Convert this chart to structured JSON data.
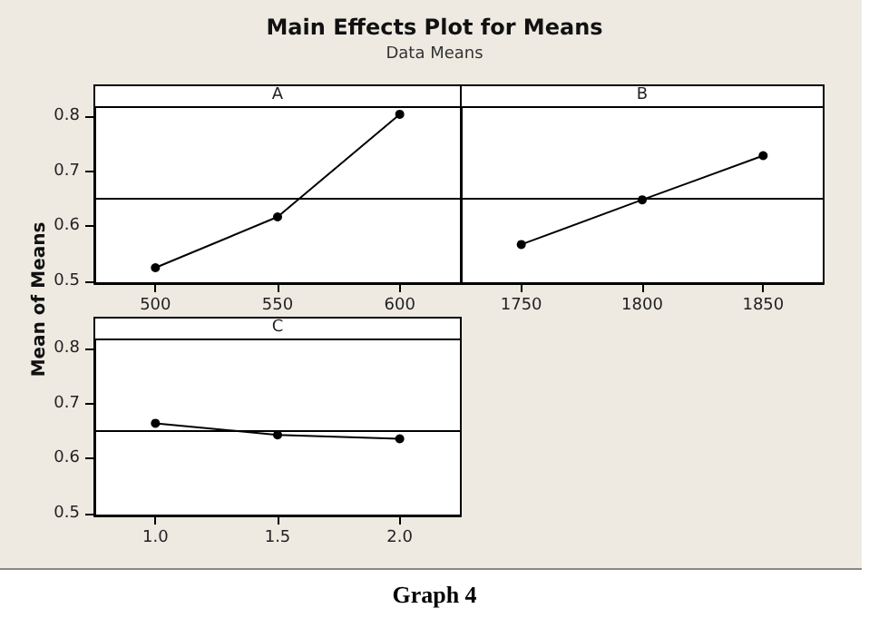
{
  "chart_data": [
    {
      "type": "line",
      "title": "A",
      "ylabel": "Mean of Means",
      "annotations": [
        "Main Effects Plot for Means",
        "Data Means",
        "Graph 4"
      ],
      "x": [
        500,
        550,
        600
      ],
      "values": [
        0.525,
        0.617,
        0.803
      ],
      "color": "#000000",
      "xlim": [
        475,
        625
      ],
      "xticks": [
        500,
        550,
        600
      ],
      "ylim": [
        0.497,
        0.816
      ],
      "yticks": [
        0.5,
        0.6,
        0.7,
        0.8
      ],
      "ref_lines": [
        {
          "axis": "y",
          "value": 0.647,
          "label": null
        }
      ],
      "marker": "circle",
      "grid": false
    },
    {
      "type": "line",
      "title": "B",
      "x": [
        1750,
        1800,
        1850
      ],
      "values": [
        0.567,
        0.648,
        0.728
      ],
      "color": "#000000",
      "xlim": [
        1725,
        1875
      ],
      "xticks": [
        1750,
        1800,
        1850
      ],
      "ylim": [
        0.497,
        0.816
      ],
      "yticks": [
        0.5,
        0.6,
        0.7,
        0.8
      ],
      "tick_labels": "x",
      "ref_lines": [
        {
          "axis": "y",
          "value": 0.647,
          "label": null
        }
      ],
      "marker": "circle",
      "grid": false
    },
    {
      "type": "line",
      "title": "C",
      "x": [
        1.0,
        1.5,
        2.0
      ],
      "values": [
        0.664,
        0.643,
        0.636
      ],
      "color": "#000000",
      "xlim": [
        0.75,
        2.25
      ],
      "xticks": [
        {
          "value": 1.0,
          "label": "1.0"
        },
        {
          "value": 1.5,
          "label": "1.5"
        },
        {
          "value": 2.0,
          "label": "2.0"
        }
      ],
      "ylim": [
        0.497,
        0.816
      ],
      "yticks": [
        0.5,
        0.6,
        0.7,
        0.8
      ],
      "ref_lines": [
        {
          "axis": "y",
          "value": 0.647,
          "label": null
        }
      ],
      "marker": "circle",
      "grid": false
    }
  ]
}
